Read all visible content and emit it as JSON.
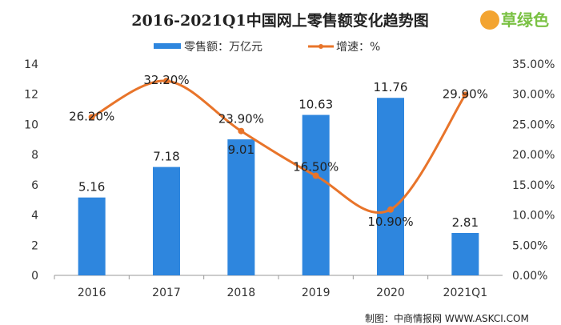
{
  "chart_data": {
    "type": "bar+line",
    "title": "2016-2021Q1中国网上零售额变化趋势图",
    "categories": [
      "2016",
      "2017",
      "2018",
      "2019",
      "2020",
      "2021Q1"
    ],
    "series": [
      {
        "name": "零售额：万亿元",
        "type": "bar",
        "axis": "left",
        "color": "#2e86de",
        "values": [
          5.16,
          7.18,
          9.01,
          10.63,
          11.76,
          2.81
        ],
        "labels": [
          "5.16",
          "7.18",
          "9.01",
          "10.63",
          "11.76",
          "2.81"
        ]
      },
      {
        "name": "增速：%",
        "type": "line",
        "axis": "right",
        "color": "#e8742a",
        "values": [
          26.2,
          32.2,
          23.9,
          16.5,
          10.9,
          29.9
        ],
        "labels": [
          "26.20%",
          "32.20%",
          "23.90%",
          "16.50%",
          "10.90%",
          "29.90%"
        ]
      }
    ],
    "left_axis": {
      "ylim": [
        0,
        14
      ],
      "ticks": [
        "0",
        "2",
        "4",
        "6",
        "8",
        "10",
        "12",
        "14"
      ]
    },
    "right_axis": {
      "ylim": [
        0,
        35
      ],
      "ticks": [
        "0.00%",
        "5.00%",
        "10.00%",
        "15.00%",
        "20.00%",
        "25.00%",
        "30.00%",
        "35.00%"
      ]
    },
    "legend_placement": "top-center",
    "grid": false
  },
  "source": "制图：中商情报网 WWW.ASKCI.COM",
  "watermark": "草绿色"
}
